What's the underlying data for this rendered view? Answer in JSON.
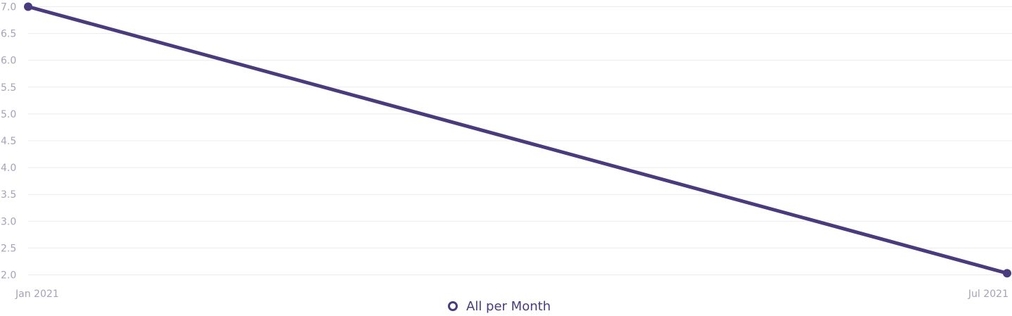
{
  "chart_data": {
    "type": "line",
    "categories": [
      "Jan 2021",
      "Jul 2021"
    ],
    "series": [
      {
        "name": "All per Month",
        "values": [
          7.0,
          2.03
        ],
        "color": "#4a3b7d"
      }
    ],
    "y_ticks": [
      "7.0",
      "6.5",
      "6.0",
      "5.5",
      "5.0",
      "4.5",
      "4.0",
      "3.5",
      "3.0",
      "2.5",
      "2.0"
    ],
    "ylim": [
      2.0,
      7.0
    ],
    "grid": true,
    "legend": "bottom-center",
    "title": "",
    "xlabel": "",
    "ylabel": ""
  },
  "colors": {
    "series": "#4a3b7d",
    "grid": "#ececf0",
    "tick_text": "#a3a3b8"
  }
}
